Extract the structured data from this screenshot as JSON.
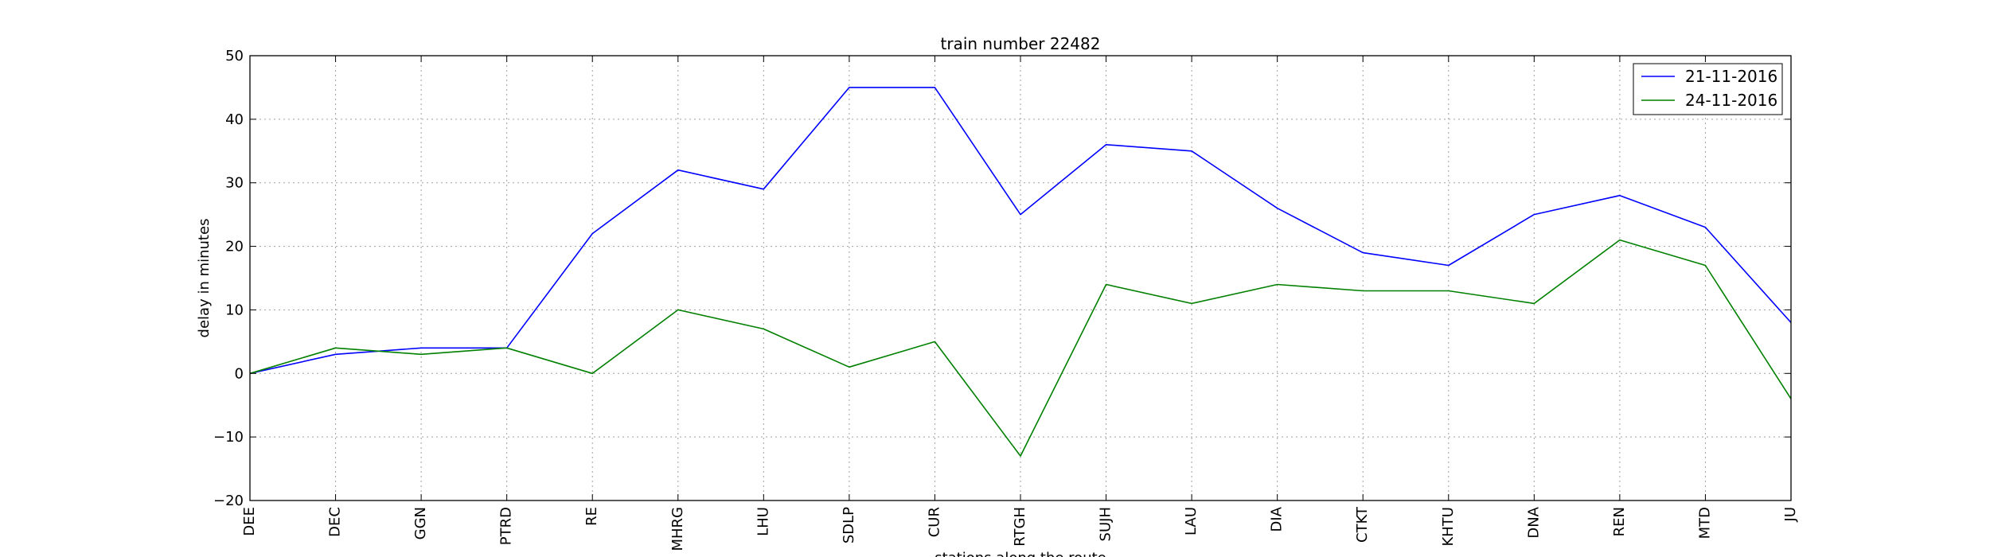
{
  "chart_data": {
    "type": "line",
    "title": "train number 22482",
    "xlabel": "stations along the route",
    "ylabel": "delay in minutes",
    "categories": [
      "DEE",
      "DEC",
      "GGN",
      "PTRD",
      "RE",
      "MHRG",
      "LHU",
      "SDLP",
      "CUR",
      "RTGH",
      "SUJH",
      "LAU",
      "DIA",
      "CTKT",
      "KHTU",
      "DNA",
      "REN",
      "MTD",
      "JU"
    ],
    "ylim": [
      -20,
      50
    ],
    "yticks": [
      -20,
      -10,
      0,
      10,
      20,
      30,
      40,
      50
    ],
    "ytick_labels": [
      "−20",
      "−10",
      "0",
      "10",
      "20",
      "30",
      "40",
      "50"
    ],
    "grid": true,
    "legend_position": "top-right",
    "series": [
      {
        "name": "21-11-2016",
        "color": "#0000ff",
        "values": [
          0,
          3,
          4,
          4,
          22,
          32,
          29,
          45,
          45,
          25,
          36,
          35,
          26,
          19,
          17,
          25,
          28,
          23,
          8
        ]
      },
      {
        "name": "24-11-2016",
        "color": "#008000",
        "values": [
          0,
          4,
          3,
          4,
          0,
          10,
          7,
          1,
          5,
          -13,
          14,
          11,
          14,
          13,
          13,
          11,
          21,
          17,
          -4
        ]
      }
    ]
  }
}
